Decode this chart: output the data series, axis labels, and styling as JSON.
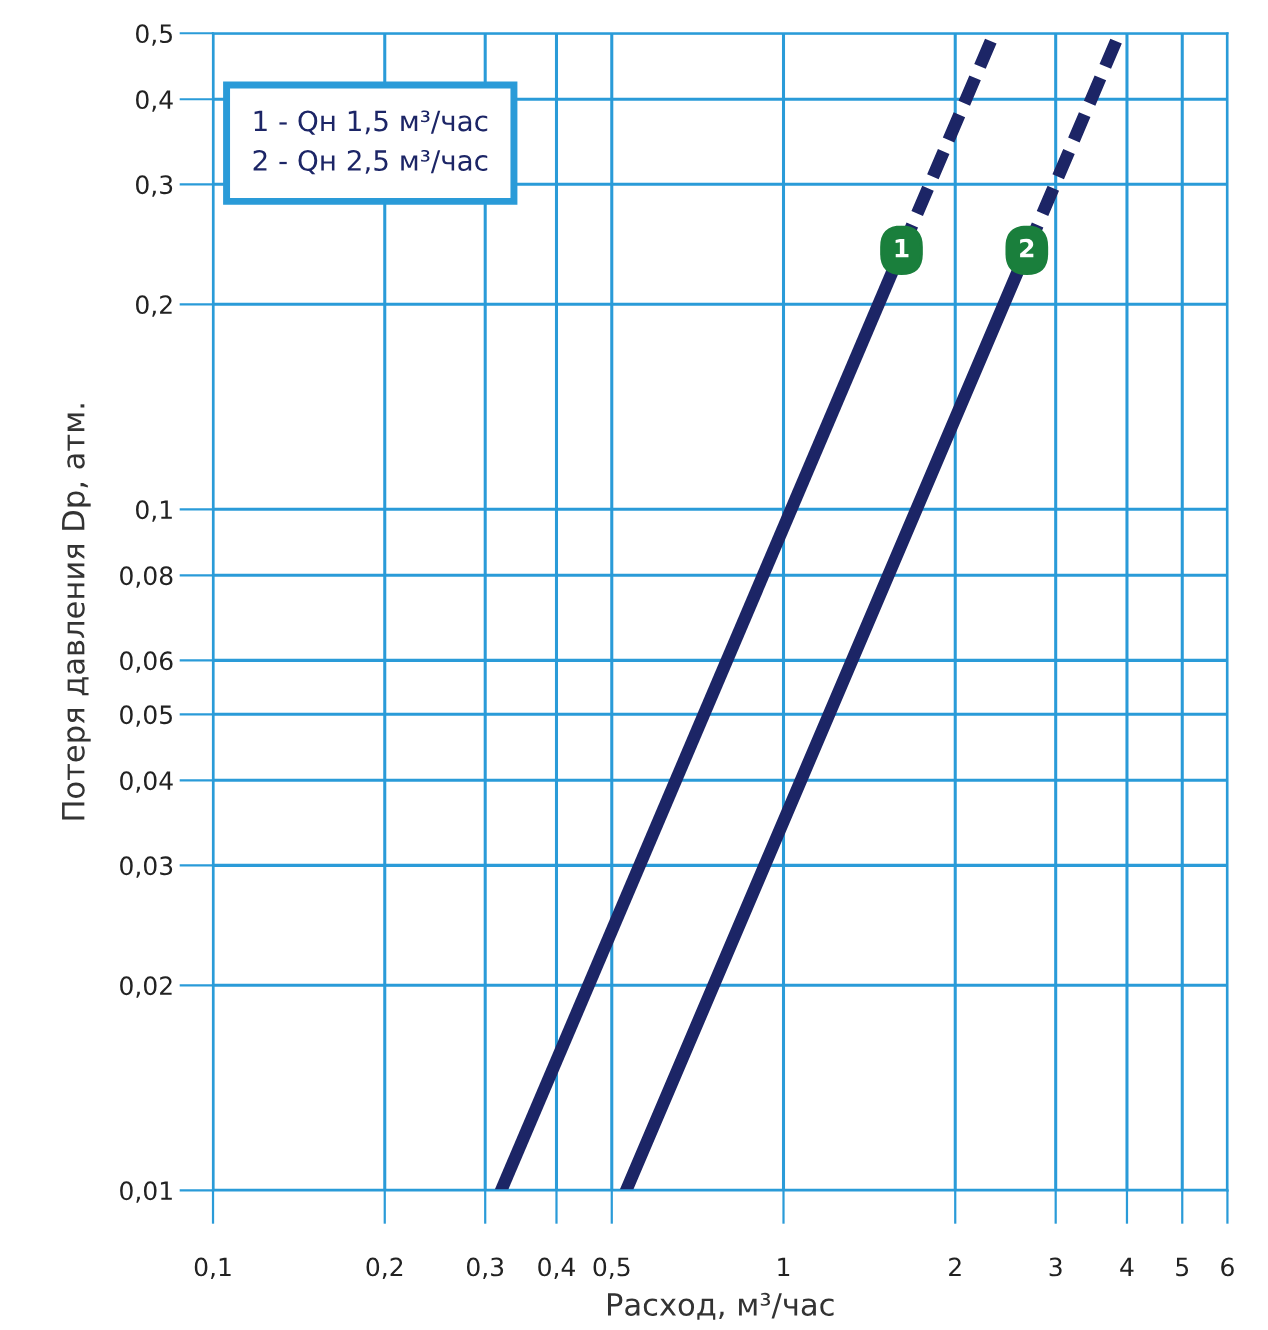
{
  "chart_data": {
    "type": "line",
    "xlabel": "Расход, м³/час",
    "ylabel": "Потеря давления Dp, атм.",
    "log": "xy",
    "grid": true,
    "xlim": [
      0.1,
      6
    ],
    "ylim": [
      0.01,
      0.5
    ],
    "xticks": [
      {
        "value": 0.1,
        "label": "0,1"
      },
      {
        "value": 0.2,
        "label": "0,2"
      },
      {
        "value": 0.3,
        "label": "0,3"
      },
      {
        "value": 0.4,
        "label": "0,4"
      },
      {
        "value": 0.5,
        "label": "0,5"
      },
      1,
      2,
      3,
      4,
      5,
      6
    ],
    "yticks": [
      {
        "value": 0.01,
        "label": "0,01"
      },
      {
        "value": 0.02,
        "label": "0,02"
      },
      {
        "value": 0.03,
        "label": "0,03"
      },
      {
        "value": 0.04,
        "label": "0,04"
      },
      {
        "value": 0.05,
        "label": "0,05"
      },
      {
        "value": 0.06,
        "label": "0,06"
      },
      {
        "value": 0.08,
        "label": "0,08"
      },
      {
        "value": 0.1,
        "label": "0,1"
      },
      {
        "value": 0.2,
        "label": "0,2"
      },
      {
        "value": 0.3,
        "label": "0,3"
      },
      {
        "value": 0.4,
        "label": "0,4"
      },
      {
        "value": 0.5,
        "label": "0,5"
      }
    ],
    "series": [
      {
        "color": "#1c2566",
        "line_style": "solid",
        "x": [
          0.32,
          1.61
        ],
        "values": [
          0.01,
          0.24
        ]
      },
      {
        "color": "#1c2566",
        "line_style": "dashed",
        "x": [
          1.61,
          2.34
        ],
        "values": [
          0.24,
          0.5
        ]
      },
      {
        "color": "#1c2566",
        "line_style": "solid",
        "x": [
          0.53,
          2.67
        ],
        "values": [
          0.01,
          0.24
        ]
      },
      {
        "color": "#1c2566",
        "line_style": "dashed",
        "x": [
          2.67,
          3.88
        ],
        "values": [
          0.24,
          0.5
        ]
      }
    ],
    "annotations": [
      "1 - Qн 1,5 м³/час",
      "2 - Qн 2,5 м³/час",
      {
        "text": "1",
        "x": 1.61,
        "y": 0.24
      },
      {
        "text": "2",
        "x": 2.67,
        "y": 0.24
      }
    ]
  }
}
